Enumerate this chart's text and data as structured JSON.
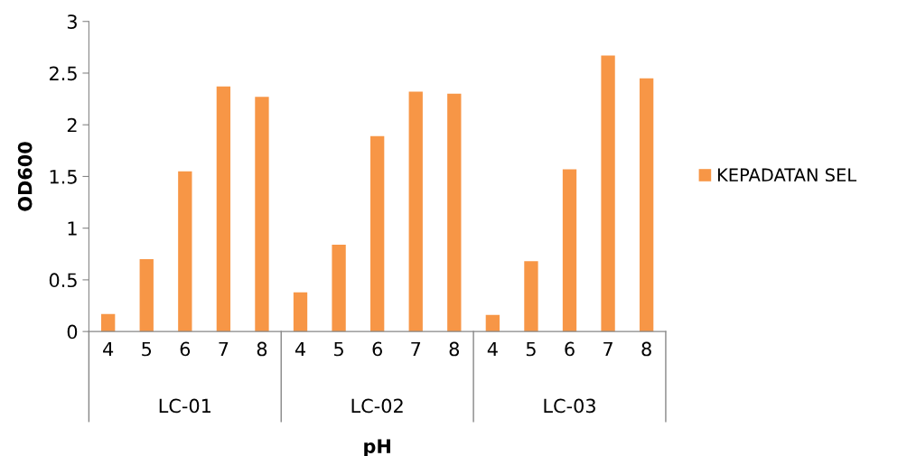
{
  "chart_data": {
    "type": "bar",
    "xlabel": "pH",
    "ylabel": "OD600",
    "categories": [
      "4",
      "5",
      "6",
      "7",
      "8",
      "4",
      "5",
      "6",
      "7",
      "8",
      "4",
      "5",
      "6",
      "7",
      "8"
    ],
    "annotations": [
      "LC-01",
      "LC-02",
      "LC-03"
    ],
    "series": [
      {
        "name": "KEPADATAN SEL",
        "color": "#f79646",
        "values": [
          0.17,
          0.7,
          1.55,
          2.37,
          2.27,
          0.38,
          0.84,
          1.89,
          2.32,
          2.3,
          0.16,
          0.68,
          1.57,
          2.67,
          2.45
        ]
      }
    ],
    "ylim": [
      0,
      3
    ],
    "yticks": [
      0,
      0.5,
      1,
      1.5,
      2,
      2.5,
      3
    ],
    "grid": false,
    "legend": "right"
  }
}
